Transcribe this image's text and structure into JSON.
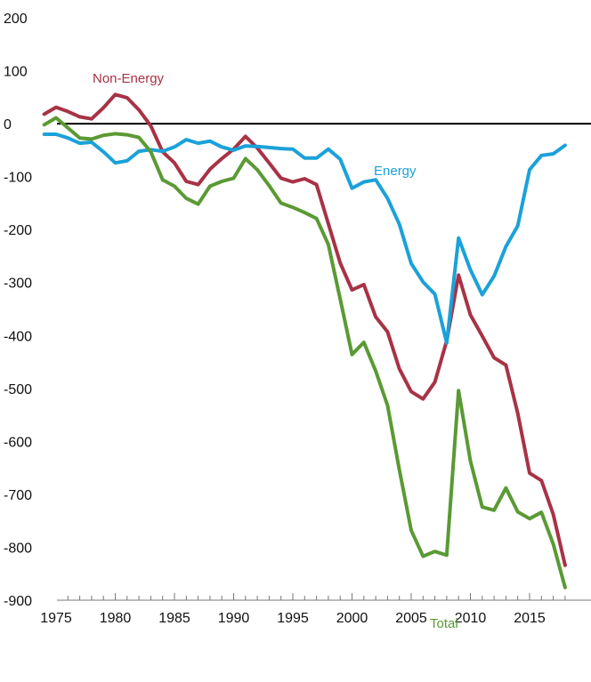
{
  "chart_data": {
    "type": "line",
    "title": "",
    "xlabel": "",
    "ylabel": "",
    "xlim": [
      1974,
      2018
    ],
    "ylim": [
      -900,
      200
    ],
    "yticks": [
      200,
      100,
      0,
      -100,
      -200,
      -300,
      -400,
      -500,
      -600,
      -700,
      -800,
      -900
    ],
    "xtick_labels": [
      1975,
      1980,
      1985,
      1990,
      1995,
      2000,
      2005,
      2010,
      2015
    ],
    "zero_line": true,
    "grid": false,
    "legend": "inline labels",
    "x": [
      1974,
      1975,
      1976,
      1977,
      1978,
      1979,
      1980,
      1981,
      1982,
      1983,
      1984,
      1985,
      1986,
      1987,
      1988,
      1989,
      1990,
      1991,
      1992,
      1993,
      1994,
      1995,
      1996,
      1997,
      1998,
      1999,
      2000,
      2001,
      2002,
      2003,
      2004,
      2005,
      2006,
      2007,
      2008,
      2009,
      2010,
      2011,
      2012,
      2013,
      2014,
      2015,
      2016,
      2017,
      2018
    ],
    "series": [
      {
        "name": "Non-Energy",
        "color": "#A83246",
        "values": [
          18,
          31,
          23,
          13,
          9,
          30,
          55,
          49,
          26,
          -4,
          -53,
          -74,
          -109,
          -115,
          -86,
          -66,
          -48,
          -24,
          -46,
          -74,
          -103,
          -110,
          -104,
          -115,
          -189,
          -263,
          -314,
          -304,
          -365,
          -393,
          -463,
          -506,
          -520,
          -488,
          -410,
          -286,
          -361,
          -401,
          -442,
          -456,
          -547,
          -660,
          -674,
          -738,
          -834
        ]
      },
      {
        "name": "Energy",
        "color": "#1BA1D9",
        "values": [
          -20,
          -20,
          -27,
          -37,
          -35,
          -53,
          -74,
          -70,
          -52,
          -49,
          -52,
          -44,
          -30,
          -37,
          -33,
          -44,
          -50,
          -42,
          -43,
          -45,
          -47,
          -48,
          -65,
          -65,
          -48,
          -67,
          -122,
          -110,
          -106,
          -141,
          -190,
          -264,
          -299,
          -322,
          -414,
          -216,
          -276,
          -323,
          -288,
          -232,
          -193,
          -87,
          -60,
          -57,
          -41
        ]
      },
      {
        "name": "Total",
        "color": "#5A9A34",
        "values": [
          -2,
          11,
          -8,
          -27,
          -29,
          -22,
          -19,
          -21,
          -26,
          -53,
          -106,
          -118,
          -141,
          -152,
          -118,
          -109,
          -103,
          -66,
          -87,
          -117,
          -150,
          -158,
          -168,
          -179,
          -228,
          -331,
          -436,
          -413,
          -467,
          -532,
          -654,
          -768,
          -817,
          -808,
          -815,
          -504,
          -637,
          -724,
          -730,
          -688,
          -733,
          -746,
          -734,
          -794,
          -876
        ]
      }
    ],
    "labels": {
      "non_energy": "Non-Energy",
      "energy": "Energy",
      "total": "Total"
    }
  }
}
